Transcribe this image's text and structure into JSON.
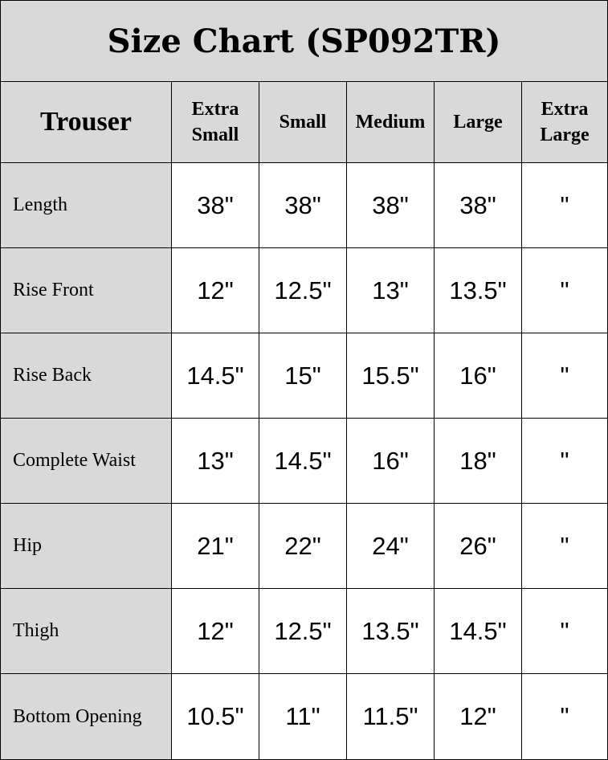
{
  "title": "Size Chart (SP092TR)",
  "header": {
    "category": "Trouser",
    "sizes": [
      "Extra Small",
      "Small",
      "Medium",
      "Large",
      "Extra Large"
    ]
  },
  "rows": [
    {
      "label": "Length",
      "values": [
        "38\"",
        "38\"",
        "38\"",
        "38\"",
        "\""
      ]
    },
    {
      "label": "Rise Front",
      "values": [
        "12\"",
        "12.5\"",
        "13\"",
        "13.5\"",
        "\""
      ]
    },
    {
      "label": "Rise Back",
      "values": [
        "14.5\"",
        "15\"",
        "15.5\"",
        "16\"",
        "\""
      ]
    },
    {
      "label": "Complete Waist",
      "values": [
        "13\"",
        "14.5\"",
        "16\"",
        "18\"",
        "\""
      ]
    },
    {
      "label": "Hip",
      "values": [
        "21\"",
        "22\"",
        "24\"",
        "26\"",
        "\""
      ]
    },
    {
      "label": "Thigh",
      "values": [
        "12\"",
        "12.5\"",
        "13.5\"",
        "14.5\"",
        "\""
      ]
    },
    {
      "label": "Bottom Opening",
      "values": [
        "10.5\"",
        "11\"",
        "11.5\"",
        "12\"",
        "\""
      ]
    }
  ],
  "colors": {
    "header_bg": "#d9d9d9",
    "border": "#000000"
  }
}
